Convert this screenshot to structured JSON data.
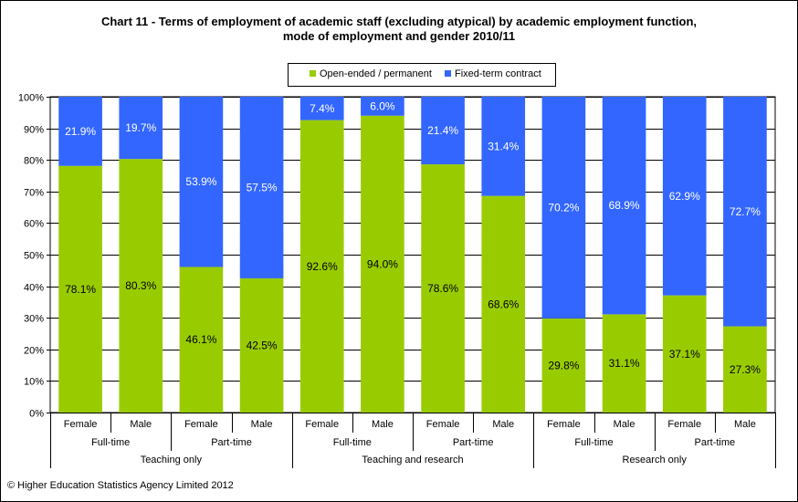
{
  "title_line1": "Chart 11 - Terms of employment of academic staff (excluding atypical) by academic employment function,",
  "title_line2": "mode of employment and gender 2010/11",
  "footer": "© Higher Education Statistics Agency Limited 2012",
  "colors": {
    "open": "#99cc00",
    "fixed": "#3366ff",
    "grid": "#000000"
  },
  "chart_data": {
    "type": "bar",
    "stacked": true,
    "percent": true,
    "categories": [
      "Female",
      "Male",
      "Female",
      "Male",
      "Female",
      "Male",
      "Female",
      "Male",
      "Female",
      "Male",
      "Female",
      "Male"
    ],
    "modes": [
      {
        "label": "Full-time",
        "span": [
          0,
          1
        ]
      },
      {
        "label": "Part-time",
        "span": [
          2,
          3
        ]
      },
      {
        "label": "Full-time",
        "span": [
          4,
          5
        ]
      },
      {
        "label": "Part-time",
        "span": [
          6,
          7
        ]
      },
      {
        "label": "Full-time",
        "span": [
          8,
          9
        ]
      },
      {
        "label": "Part-time",
        "span": [
          10,
          11
        ]
      }
    ],
    "functions": [
      {
        "label": "Teaching only",
        "span": [
          0,
          3
        ]
      },
      {
        "label": "Teaching and research",
        "span": [
          4,
          7
        ]
      },
      {
        "label": "Research only",
        "span": [
          8,
          11
        ]
      }
    ],
    "series": [
      {
        "name": "Open-ended / permanent",
        "values": [
          78.1,
          80.3,
          46.1,
          42.5,
          92.6,
          94.0,
          78.6,
          68.6,
          29.8,
          31.1,
          37.1,
          27.3
        ]
      },
      {
        "name": "Fixed-term contract",
        "values": [
          21.9,
          19.7,
          53.9,
          57.5,
          7.4,
          6.0,
          21.4,
          31.4,
          70.2,
          68.9,
          62.9,
          72.7
        ]
      }
    ],
    "ylim": [
      0,
      100
    ],
    "yticks": [
      "0%",
      "10%",
      "20%",
      "30%",
      "40%",
      "50%",
      "60%",
      "70%",
      "80%",
      "90%",
      "100%"
    ],
    "grid": true,
    "legend_position": "top"
  }
}
